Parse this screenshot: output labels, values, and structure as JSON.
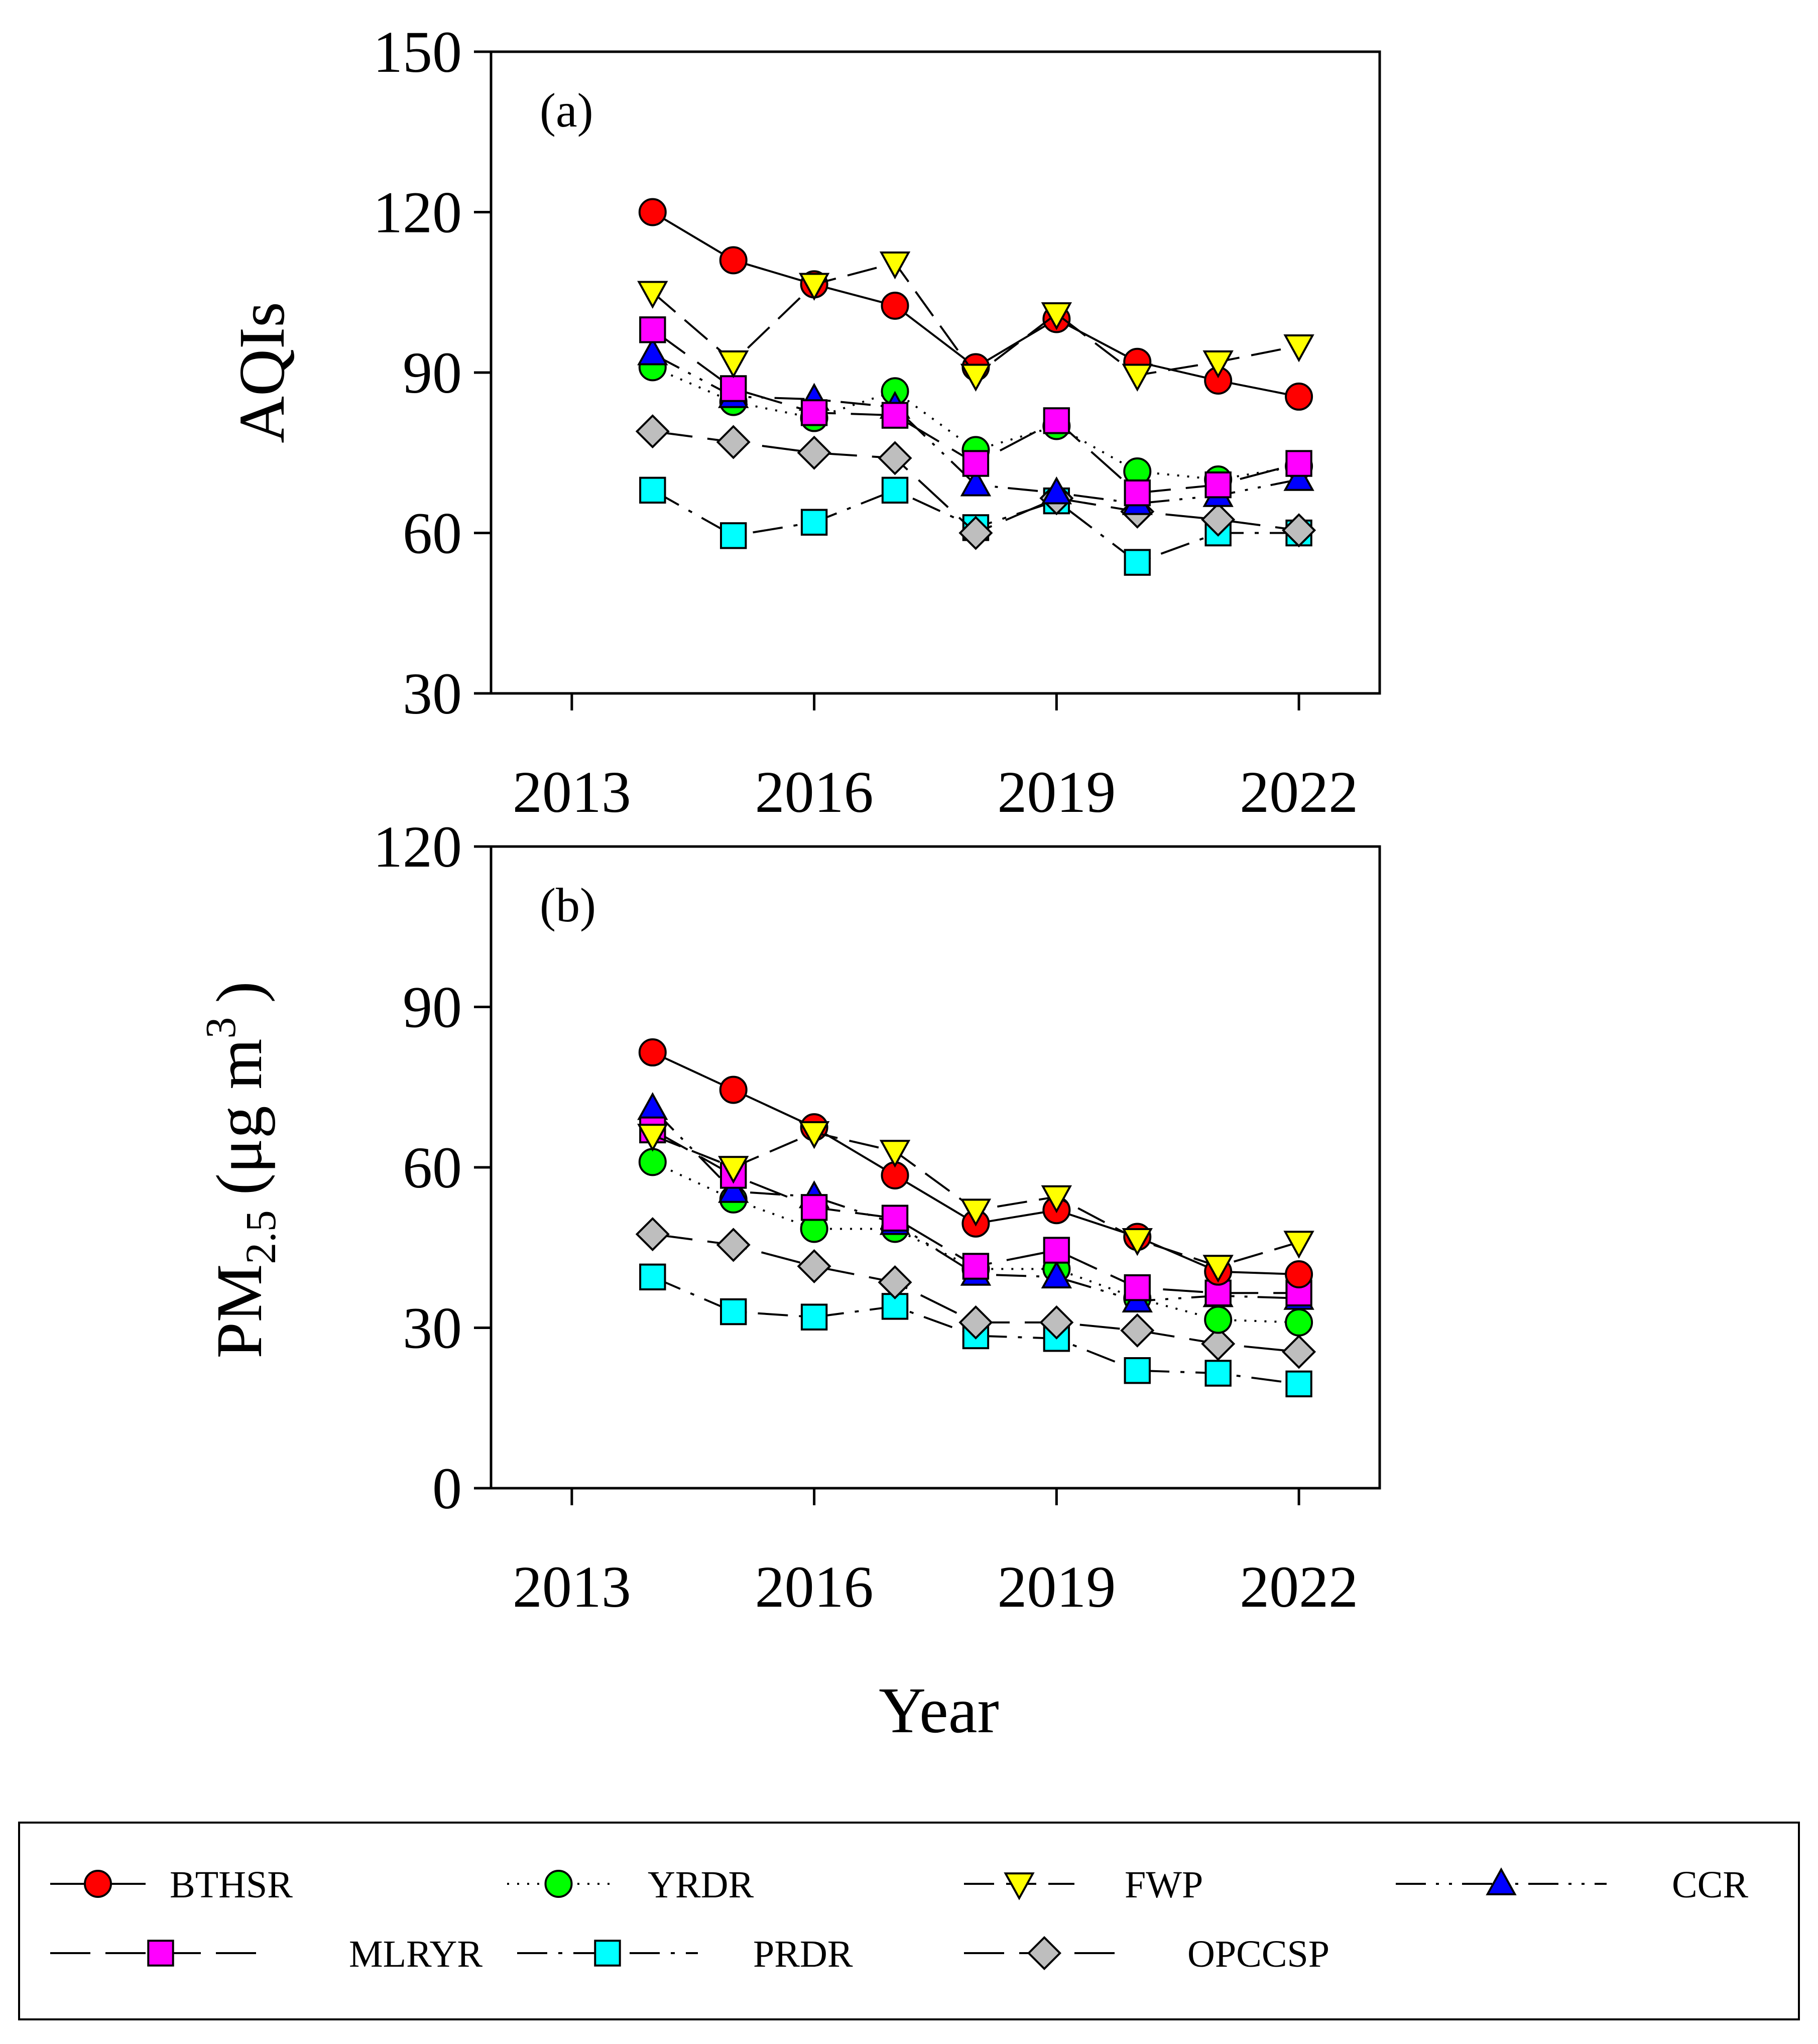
{
  "chart_data": [
    {
      "panel": "(a)",
      "type": "line",
      "ylabel": "AQIs",
      "xlabel": "",
      "ylim": [
        30,
        150
      ],
      "yticks": [
        30,
        60,
        90,
        120,
        150
      ],
      "xlim": [
        2012,
        2023
      ],
      "xticks": [
        2013,
        2016,
        2019,
        2022
      ],
      "x": [
        2014,
        2015,
        2016,
        2017,
        2018,
        2019,
        2020,
        2021,
        2022
      ],
      "series": [
        {
          "name": "BTHSR",
          "values": [
            120,
            111,
            106.5,
            102.5,
            91,
            100,
            92,
            88.5,
            85.5
          ]
        },
        {
          "name": "YRDR",
          "values": [
            91,
            84.5,
            81.5,
            86.5,
            75.5,
            80,
            71.5,
            70,
            72.5
          ]
        },
        {
          "name": "FWP",
          "values": [
            105,
            92,
            106.5,
            110.5,
            89.5,
            101,
            89.5,
            92,
            95
          ]
        },
        {
          "name": "CCR",
          "values": [
            93.5,
            85.5,
            85,
            83.5,
            69,
            67.5,
            65.5,
            67,
            70
          ]
        },
        {
          "name": "MLRYR",
          "values": [
            98,
            87,
            82.5,
            82,
            73,
            81,
            67.5,
            69,
            73
          ]
        },
        {
          "name": "PRDR",
          "values": [
            68,
            59.5,
            62,
            68,
            61,
            66,
            54.5,
            60,
            60
          ]
        },
        {
          "name": "OPCCSP",
          "values": [
            79,
            77,
            75,
            74,
            60,
            66.5,
            64,
            62.5,
            60.5
          ]
        }
      ]
    },
    {
      "panel": "(b)",
      "type": "line",
      "ylabel_main": "PM",
      "ylabel_sub": "2.5",
      "ylabel_units": "(μg m",
      "ylabel_sup": "3",
      "ylabel_close": ")",
      "xlabel": "Year",
      "ylim": [
        0,
        120
      ],
      "yticks": [
        0,
        30,
        60,
        90,
        120
      ],
      "xlim": [
        2012,
        2023
      ],
      "xticks": [
        2013,
        2016,
        2019,
        2022
      ],
      "x": [
        2014,
        2015,
        2016,
        2017,
        2018,
        2019,
        2020,
        2021,
        2022
      ],
      "series": [
        {
          "name": "BTHSR",
          "values": [
            81.5,
            74.5,
            67.5,
            58.5,
            49.5,
            52,
            47,
            40.5,
            40
          ]
        },
        {
          "name": "YRDR",
          "values": [
            61,
            54,
            48.5,
            48.5,
            41,
            41,
            35.5,
            31.5,
            31
          ]
        },
        {
          "name": "FWP",
          "values": [
            66,
            60,
            66.5,
            63,
            52,
            54.5,
            46.5,
            41.5,
            46
          ]
        },
        {
          "name": "CCR",
          "values": [
            71,
            55.5,
            54.5,
            49.5,
            40,
            39.5,
            35,
            36,
            35.5
          ]
        },
        {
          "name": "MLRYR",
          "values": [
            67,
            58.5,
            52.5,
            50.5,
            41.5,
            44.5,
            37.5,
            36.5,
            36.5
          ]
        },
        {
          "name": "PRDR",
          "values": [
            39.5,
            33,
            32,
            34,
            28.5,
            28,
            22,
            21.5,
            19.5
          ]
        },
        {
          "name": "OPCCSP",
          "values": [
            47.5,
            45.5,
            41.5,
            38.5,
            31,
            31,
            29.5,
            27,
            25.5
          ]
        }
      ]
    }
  ],
  "legend": {
    "placement": "bottom",
    "items": [
      {
        "name": "BTHSR",
        "marker": "circle",
        "color": "#FF0000",
        "dash": "solid"
      },
      {
        "name": "YRDR",
        "marker": "circle",
        "color": "#00FF00",
        "dash": "dotted"
      },
      {
        "name": "FWP",
        "marker": "triangle-down",
        "color": "#FFFF00",
        "dash": "dashed"
      },
      {
        "name": "CCR",
        "marker": "triangle-up",
        "color": "#0000FF",
        "dash": "dash-dot-dot"
      },
      {
        "name": "MLRYR",
        "marker": "square",
        "color": "#FF00FF",
        "dash": "long-dash"
      },
      {
        "name": "PRDR",
        "marker": "square",
        "color": "#00FFFF",
        "dash": "dash-dot"
      },
      {
        "name": "OPCCSP",
        "marker": "diamond",
        "color": "#BEBEBE",
        "dash": "long-dash"
      }
    ]
  }
}
